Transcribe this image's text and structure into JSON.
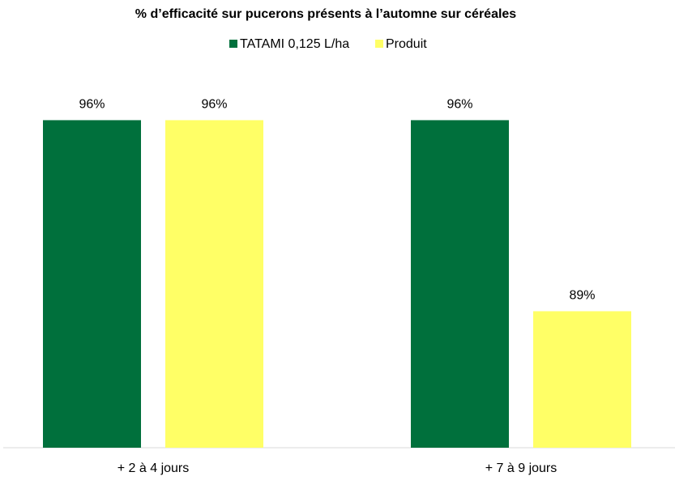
{
  "chart_data": {
    "type": "bar",
    "title": "% d’efficacité sur pucerons présents à l’automne sur céréales",
    "categories": [
      "+ 2 à 4 jours",
      "+ 7 à 9 jours"
    ],
    "series": [
      {
        "name": "TATAMI 0,125 L/ha",
        "color": "#00703c",
        "values": [
          96,
          96
        ],
        "value_labels": [
          "96%",
          "96%"
        ]
      },
      {
        "name": "Produit",
        "color": "#ffff66",
        "values": [
          96,
          89
        ],
        "value_labels": [
          "96%",
          "89%"
        ]
      }
    ],
    "ylim": [
      84,
      98
    ],
    "legend": "top"
  }
}
